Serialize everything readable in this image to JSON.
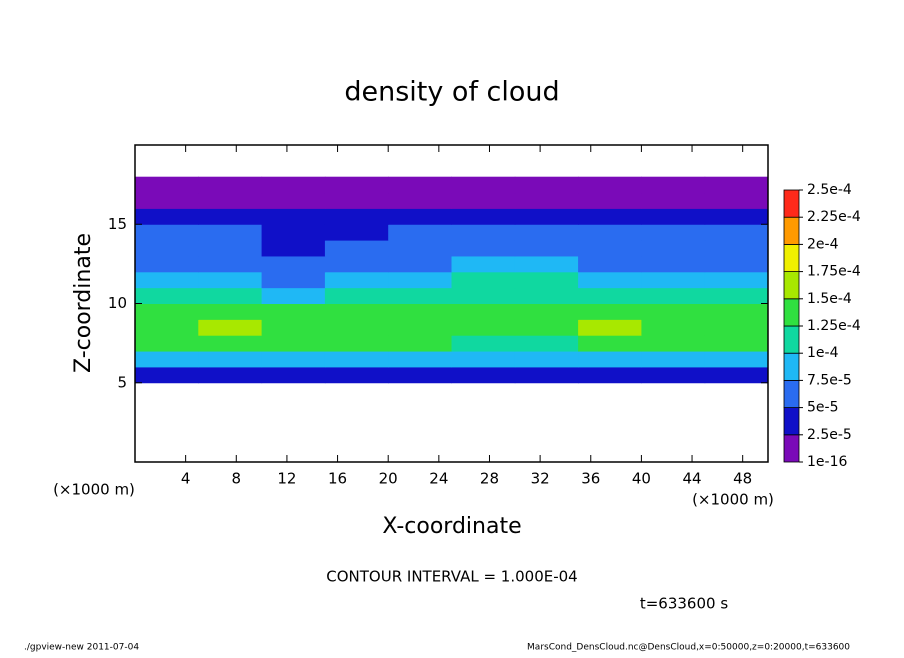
{
  "chart_data": {
    "type": "heatmap",
    "title": "density of cloud",
    "x_label": "X-coordinate",
    "y_label": "Z-coordinate",
    "x_unit": "(×1000 m)",
    "y_unit": "(×1000 m)",
    "contour_note": "CONTOUR INTERVAL = 1.000E-04",
    "time_note": "t=633600 s",
    "footer_left": "./gpview-new  2011-07-04",
    "footer_right": "MarsCond_DensCloud.nc@DensCloud,x=0:50000,z=0:20000,t=633600",
    "xlim": [
      0,
      50
    ],
    "ylim": [
      0,
      20
    ],
    "xticks": [
      4,
      8,
      12,
      16,
      20,
      24,
      28,
      32,
      36,
      40,
      44,
      48
    ],
    "yticks": [
      5,
      10,
      15
    ],
    "x": [
      2.5,
      7.5,
      12.5,
      17.5,
      22.5,
      27.5,
      32.5,
      37.5,
      42.5,
      47.5
    ],
    "y": [
      0.5,
      1.5,
      2.5,
      3.5,
      4.5,
      5.5,
      6.5,
      7.5,
      8.5,
      9.5,
      10.5,
      11.5,
      12.5,
      13.5,
      14.5,
      15.5,
      16.5,
      17.5,
      18.5,
      19.5
    ],
    "values": [
      [
        null,
        null,
        null,
        null,
        null,
        null,
        null,
        null,
        null,
        null
      ],
      [
        null,
        null,
        null,
        null,
        null,
        null,
        null,
        null,
        null,
        null
      ],
      [
        null,
        null,
        null,
        null,
        null,
        null,
        null,
        null,
        null,
        null
      ],
      [
        null,
        null,
        null,
        null,
        null,
        null,
        null,
        null,
        null,
        null
      ],
      [
        null,
        null,
        null,
        null,
        null,
        null,
        null,
        null,
        null,
        null
      ],
      [
        4e-05,
        4e-05,
        3e-05,
        3e-05,
        4e-05,
        4e-05,
        3.5e-05,
        4e-05,
        4e-05,
        4e-05
      ],
      [
        9e-05,
        8.5e-05,
        8e-05,
        8.5e-05,
        9e-05,
        9e-05,
        8e-05,
        9e-05,
        9e-05,
        9e-05
      ],
      [
        0.00013,
        0.000125,
        0.00013,
        0.00013,
        0.000125,
        0.00012,
        0.000115,
        0.00013,
        0.00013,
        0.000125
      ],
      [
        0.00014,
        0.00015,
        0.000145,
        0.00014,
        0.000145,
        0.000135,
        0.00014,
        0.00015,
        0.000145,
        0.00014
      ],
      [
        0.000135,
        0.00014,
        0.00013,
        0.000135,
        0.00013,
        0.00013,
        0.00013,
        0.000135,
        0.00014,
        0.000135
      ],
      [
        0.000105,
        0.0001,
        9.5e-05,
        0.0001,
        0.000105,
        0.000115,
        0.000115,
        0.000105,
        0.0001,
        0.000105
      ],
      [
        8e-05,
        7.5e-05,
        7e-05,
        7.5e-05,
        8.5e-05,
        0.00011,
        0.000105,
        8.5e-05,
        8e-05,
        8e-05
      ],
      [
        6.5e-05,
        6e-05,
        5e-05,
        5.5e-05,
        7e-05,
        9e-05,
        8.5e-05,
        7e-05,
        6.5e-05,
        6.5e-05
      ],
      [
        5.5e-05,
        5e-05,
        4.5e-05,
        5e-05,
        6e-05,
        7e-05,
        6.5e-05,
        6e-05,
        5.5e-05,
        5.5e-05
      ],
      [
        5e-05,
        5e-05,
        4.5e-05,
        4.5e-05,
        5e-05,
        5.5e-05,
        5e-05,
        5.5e-05,
        5e-05,
        5e-05
      ],
      [
        4e-05,
        4e-05,
        4e-05,
        4e-05,
        4e-05,
        3.5e-05,
        2.5e-05,
        4e-05,
        4e-05,
        4e-05
      ],
      [
        2e-05,
        2e-05,
        2e-05,
        2e-05,
        2e-05,
        2e-05,
        1.5e-05,
        2e-05,
        2e-05,
        2e-05
      ],
      [
        1e-05,
        1e-05,
        1e-05,
        1e-05,
        1e-05,
        1.2e-05,
        1.2e-05,
        1e-05,
        1e-05,
        1e-05
      ],
      [
        null,
        null,
        null,
        null,
        null,
        null,
        null,
        null,
        null,
        null
      ],
      [
        null,
        null,
        null,
        null,
        null,
        null,
        null,
        null,
        null,
        null
      ]
    ],
    "levels": [
      {
        "value": 1e-16,
        "label": "1e-16"
      },
      {
        "value": 2.5e-05,
        "label": "2.5e-5"
      },
      {
        "value": 5e-05,
        "label": "5e-5"
      },
      {
        "value": 7.5e-05,
        "label": "7.5e-5"
      },
      {
        "value": 0.0001,
        "label": "1e-4"
      },
      {
        "value": 0.000125,
        "label": "1.25e-4"
      },
      {
        "value": 0.00015,
        "label": "1.5e-4"
      },
      {
        "value": 0.000175,
        "label": "1.75e-4"
      },
      {
        "value": 0.0002,
        "label": "2e-4"
      },
      {
        "value": 0.000225,
        "label": "2.25e-4"
      },
      {
        "value": 0.00025,
        "label": "2.5e-4"
      }
    ],
    "colors": [
      "#7a0ab8",
      "#1010c8",
      "#2a6cf0",
      "#1fb8f5",
      "#10d8a0",
      "#30e040",
      "#a8e800",
      "#f0f000",
      "#ff9a00",
      "#ff2a1a"
    ]
  }
}
